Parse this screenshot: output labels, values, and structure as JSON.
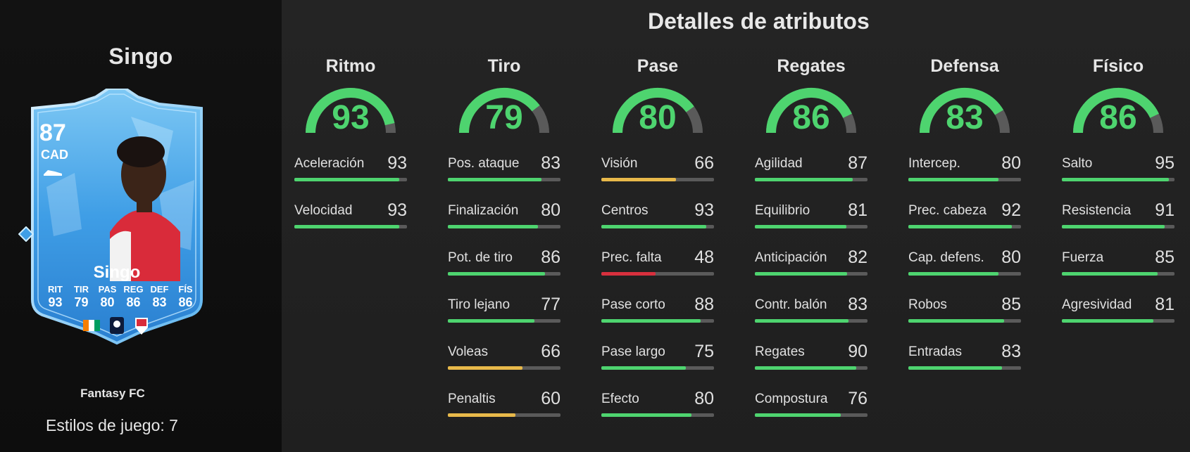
{
  "player": {
    "name": "Singo",
    "rating": "87",
    "position": "CAD",
    "card_name": "Singo",
    "stat_labels": [
      "RIT",
      "TIR",
      "PAS",
      "REG",
      "DEF",
      "FÍS"
    ],
    "stat_values": [
      "93",
      "79",
      "80",
      "86",
      "83",
      "86"
    ],
    "team": "Fantasy FC",
    "playstyles": "Estilos de juego: 7"
  },
  "section_title": "Detalles de atributos",
  "colors": {
    "high": "#4ed46f",
    "mid": "#e8b94a",
    "low": "#d8303e",
    "track": "#5a5a5a"
  },
  "categories": [
    {
      "name": "Ritmo",
      "value": 93,
      "attrs": [
        {
          "label": "Aceleración",
          "value": 93
        },
        {
          "label": "Velocidad",
          "value": 93
        }
      ]
    },
    {
      "name": "Tiro",
      "value": 79,
      "attrs": [
        {
          "label": "Pos. ataque",
          "value": 83
        },
        {
          "label": "Finalización",
          "value": 80
        },
        {
          "label": "Pot. de tiro",
          "value": 86
        },
        {
          "label": "Tiro lejano",
          "value": 77
        },
        {
          "label": "Voleas",
          "value": 66
        },
        {
          "label": "Penaltis",
          "value": 60
        }
      ]
    },
    {
      "name": "Pase",
      "value": 80,
      "attrs": [
        {
          "label": "Visión",
          "value": 66
        },
        {
          "label": "Centros",
          "value": 93
        },
        {
          "label": "Prec. falta",
          "value": 48
        },
        {
          "label": "Pase corto",
          "value": 88
        },
        {
          "label": "Pase largo",
          "value": 75
        },
        {
          "label": "Efecto",
          "value": 80
        }
      ]
    },
    {
      "name": "Regates",
      "value": 86,
      "attrs": [
        {
          "label": "Agilidad",
          "value": 87
        },
        {
          "label": "Equilibrio",
          "value": 81
        },
        {
          "label": "Anticipación",
          "value": 82
        },
        {
          "label": "Contr. balón",
          "value": 83
        },
        {
          "label": "Regates",
          "value": 90
        },
        {
          "label": "Compostura",
          "value": 76
        }
      ]
    },
    {
      "name": "Defensa",
      "value": 83,
      "attrs": [
        {
          "label": "Intercep.",
          "value": 80
        },
        {
          "label": "Prec. cabeza",
          "value": 92
        },
        {
          "label": "Cap. defens.",
          "value": 80
        },
        {
          "label": "Robos",
          "value": 85
        },
        {
          "label": "Entradas",
          "value": 83
        }
      ]
    },
    {
      "name": "Físico",
      "value": 86,
      "attrs": [
        {
          "label": "Salto",
          "value": 95
        },
        {
          "label": "Resistencia",
          "value": 91
        },
        {
          "label": "Fuerza",
          "value": 85
        },
        {
          "label": "Agresividad",
          "value": 81
        }
      ]
    }
  ]
}
